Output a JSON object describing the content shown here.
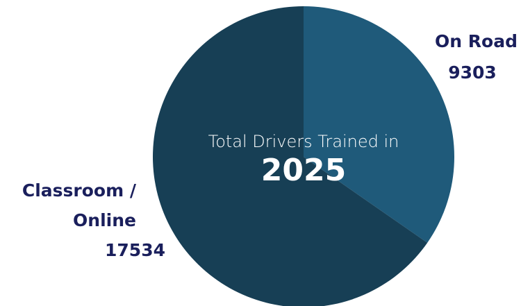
{
  "chart_data": {
    "type": "pie",
    "categories": [
      "On Road",
      "Classroom / Online"
    ],
    "values": [
      9303,
      17534
    ],
    "colors": [
      "#1f5a7a",
      "#173f55"
    ],
    "annotation": "Total Drivers Trained in",
    "annotation_year": "2025"
  }
}
